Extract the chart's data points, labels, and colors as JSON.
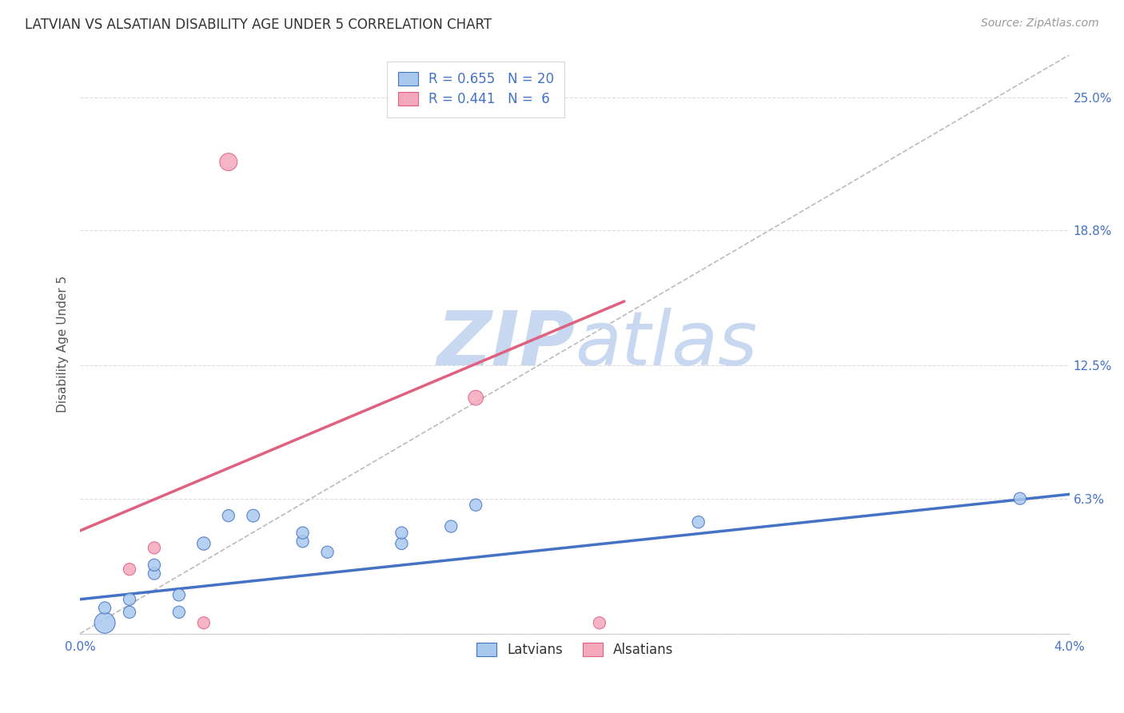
{
  "title": "LATVIAN VS ALSATIAN DISABILITY AGE UNDER 5 CORRELATION CHART",
  "source_text": "Source: ZipAtlas.com",
  "ylabel": "Disability Age Under 5",
  "x_min": 0.0,
  "x_max": 0.04,
  "y_min": 0.0,
  "y_max": 0.27,
  "y_ticks": [
    0.0,
    0.063,
    0.125,
    0.188,
    0.25
  ],
  "y_tick_labels": [
    "",
    "6.3%",
    "12.5%",
    "18.8%",
    "25.0%"
  ],
  "x_ticks": [
    0.0,
    0.01,
    0.02,
    0.03,
    0.04
  ],
  "x_tick_labels": [
    "0.0%",
    "",
    "",
    "",
    "4.0%"
  ],
  "latvian_color": "#A8C8EE",
  "alsatian_color": "#F4A8BC",
  "latvian_line_color": "#4472C4",
  "alsatian_line_color": "#E06080",
  "ref_line_color": "#BBBBBB",
  "grid_color": "#DDDDDD",
  "background_color": "#FFFFFF",
  "watermark_color": "#C8D8F0",
  "legend_R_latvian": "0.655",
  "legend_N_latvian": "20",
  "legend_R_alsatian": "0.441",
  "legend_N_alsatian": "6",
  "latvian_x": [
    0.001,
    0.001,
    0.002,
    0.002,
    0.003,
    0.003,
    0.004,
    0.004,
    0.005,
    0.006,
    0.007,
    0.009,
    0.009,
    0.01,
    0.013,
    0.013,
    0.015,
    0.016,
    0.025,
    0.038
  ],
  "latvian_y": [
    0.005,
    0.012,
    0.01,
    0.016,
    0.028,
    0.032,
    0.01,
    0.018,
    0.042,
    0.055,
    0.055,
    0.043,
    0.047,
    0.038,
    0.042,
    0.047,
    0.05,
    0.06,
    0.052,
    0.063
  ],
  "latvian_sizes": [
    350,
    120,
    120,
    120,
    120,
    120,
    120,
    120,
    140,
    120,
    130,
    120,
    120,
    120,
    120,
    120,
    120,
    120,
    120,
    120
  ],
  "alsatian_x": [
    0.002,
    0.003,
    0.005,
    0.006,
    0.016,
    0.021
  ],
  "alsatian_y": [
    0.03,
    0.04,
    0.005,
    0.22,
    0.11,
    0.005
  ],
  "alsatian_sizes": [
    120,
    120,
    120,
    250,
    180,
    120
  ],
  "latvian_trend_x": [
    0.0,
    0.04
  ],
  "latvian_trend_y": [
    0.016,
    0.065
  ],
  "alsatian_trend_x": [
    0.0,
    0.022
  ],
  "alsatian_trend_y": [
    0.048,
    0.155
  ],
  "ref_line_x": [
    0.0,
    0.04
  ],
  "ref_line_y": [
    0.0,
    0.27
  ]
}
